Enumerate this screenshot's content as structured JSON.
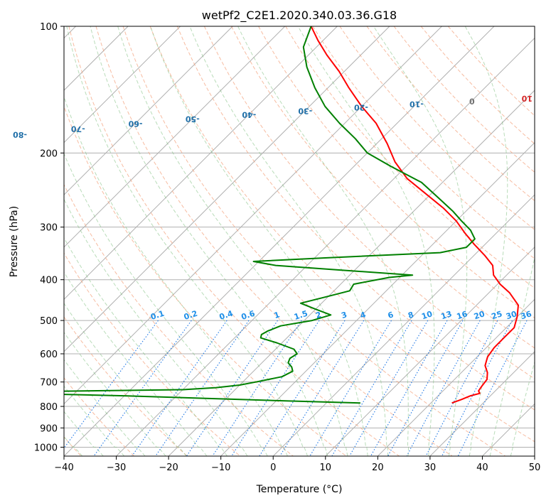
{
  "chart_data": {
    "type": "line",
    "chart_kind": "skew-T log-P diagram",
    "title": "wetPf2_C2E1.2020.340.03.36.G18",
    "xlabel": "Temperature (°C)",
    "ylabel": "Pressure (hPa)",
    "xlim": [
      -40,
      50
    ],
    "ylim": [
      1050,
      100
    ],
    "y_scale": "log",
    "x_ticks": [
      -40,
      -30,
      -20,
      -10,
      0,
      10,
      20,
      30,
      40,
      50
    ],
    "y_ticks": [
      100,
      200,
      300,
      400,
      500,
      600,
      700,
      800,
      900,
      1000
    ],
    "grid": true,
    "series": [
      {
        "role": "temperature",
        "color": "#ff0000",
        "points": [
          {
            "p": 785,
            "t": 24.0
          },
          {
            "p": 770,
            "t": 25.2
          },
          {
            "p": 755,
            "t": 26.2
          },
          {
            "p": 745,
            "t": 27.5
          },
          {
            "p": 735,
            "t": 26.8
          },
          {
            "p": 715,
            "t": 26.5
          },
          {
            "p": 690,
            "t": 26.2
          },
          {
            "p": 665,
            "t": 25.0
          },
          {
            "p": 640,
            "t": 23.2
          },
          {
            "p": 610,
            "t": 22.0
          },
          {
            "p": 580,
            "t": 21.5
          },
          {
            "p": 550,
            "t": 21.5
          },
          {
            "p": 520,
            "t": 21.5
          },
          {
            "p": 490,
            "t": 20.0
          },
          {
            "p": 460,
            "t": 18.0
          },
          {
            "p": 430,
            "t": 14.0
          },
          {
            "p": 410,
            "t": 10.5
          },
          {
            "p": 390,
            "t": 7.5
          },
          {
            "p": 370,
            "t": 5.5
          },
          {
            "p": 350,
            "t": 2.0
          },
          {
            "p": 330,
            "t": -2.0
          },
          {
            "p": 310,
            "t": -6.0
          },
          {
            "p": 290,
            "t": -10.0
          },
          {
            "p": 270,
            "t": -15.0
          },
          {
            "p": 250,
            "t": -21.0
          },
          {
            "p": 230,
            "t": -27.5
          },
          {
            "p": 210,
            "t": -33.0
          },
          {
            "p": 190,
            "t": -38.0
          },
          {
            "p": 170,
            "t": -44.0
          },
          {
            "p": 155,
            "t": -50.0
          },
          {
            "p": 140,
            "t": -56.0
          },
          {
            "p": 128,
            "t": -61.0
          },
          {
            "p": 117,
            "t": -66.5
          },
          {
            "p": 108,
            "t": -71.0
          },
          {
            "p": 100,
            "t": -75.0
          }
        ]
      },
      {
        "role": "dewpoint",
        "color": "#008000",
        "points": [
          {
            "p": 785,
            "t": 6.5
          },
          {
            "p": 775,
            "t": -10.0
          },
          {
            "p": 765,
            "t": -25.0
          },
          {
            "p": 755,
            "t": -40.0
          },
          {
            "p": 745,
            "t": -60.0
          },
          {
            "p": 737,
            "t": -55.0
          },
          {
            "p": 730,
            "t": -30.0
          },
          {
            "p": 722,
            "t": -24.0
          },
          {
            "p": 712,
            "t": -20.0
          },
          {
            "p": 700,
            "t": -17.5
          },
          {
            "p": 680,
            "t": -13.5
          },
          {
            "p": 660,
            "t": -12.5
          },
          {
            "p": 645,
            "t": -13.5
          },
          {
            "p": 630,
            "t": -15.0
          },
          {
            "p": 615,
            "t": -15.5
          },
          {
            "p": 600,
            "t": -15.0
          },
          {
            "p": 585,
            "t": -16.5
          },
          {
            "p": 565,
            "t": -21.0
          },
          {
            "p": 550,
            "t": -25.0
          },
          {
            "p": 540,
            "t": -25.5
          },
          {
            "p": 530,
            "t": -25.0
          },
          {
            "p": 515,
            "t": -23.5
          },
          {
            "p": 500,
            "t": -18.5
          },
          {
            "p": 485,
            "t": -16.0
          },
          {
            "p": 470,
            "t": -20.0
          },
          {
            "p": 455,
            "t": -24.0
          },
          {
            "p": 440,
            "t": -20.5
          },
          {
            "p": 425,
            "t": -17.0
          },
          {
            "p": 410,
            "t": -17.5
          },
          {
            "p": 395,
            "t": -12.0
          },
          {
            "p": 390,
            "t": -8.0
          },
          {
            "p": 380,
            "t": -22.0
          },
          {
            "p": 370,
            "t": -36.0
          },
          {
            "p": 362,
            "t": -41.0
          },
          {
            "p": 355,
            "t": -28.0
          },
          {
            "p": 345,
            "t": -7.0
          },
          {
            "p": 335,
            "t": -3.0
          },
          {
            "p": 320,
            "t": -3.0
          },
          {
            "p": 305,
            "t": -5.5
          },
          {
            "p": 290,
            "t": -9.0
          },
          {
            "p": 275,
            "t": -12.5
          },
          {
            "p": 255,
            "t": -18.0
          },
          {
            "p": 235,
            "t": -24.0
          },
          {
            "p": 215,
            "t": -33.0
          },
          {
            "p": 200,
            "t": -40.0
          },
          {
            "p": 185,
            "t": -45.0
          },
          {
            "p": 170,
            "t": -51.0
          },
          {
            "p": 155,
            "t": -57.0
          },
          {
            "p": 140,
            "t": -62.5
          },
          {
            "p": 125,
            "t": -68.0
          },
          {
            "p": 112,
            "t": -72.5
          },
          {
            "p": 100,
            "t": -75.0
          }
        ]
      }
    ],
    "dry_adiabats_c": [
      -100,
      -90,
      -80,
      -70,
      -60,
      -50,
      -40,
      -30,
      -20,
      -10,
      0,
      10,
      20,
      30,
      40
    ],
    "mixing_ratio_labels": [
      "0.1",
      "0.2",
      "0.4",
      "0.6",
      "1",
      "1.5",
      "2",
      "3",
      "4",
      "6",
      "8",
      "10",
      "13",
      "16",
      "20",
      "25",
      "30",
      "36"
    ],
    "mixing_ratio_values": [
      0.1,
      0.2,
      0.4,
      0.6,
      1,
      1.5,
      2,
      3,
      4,
      6,
      8,
      10,
      13,
      16,
      20,
      25,
      30,
      36
    ],
    "colors": {
      "isotherm": "#b0b0b0",
      "dry_adiabat": "#f4a582",
      "moist_adiabat": "#7fbf7f",
      "mixing_ratio": "#1f77e4",
      "dry_label_cold": "#1f6fa8",
      "dry_label_warm": "#d62728",
      "zero_label": "#707070",
      "mixing_label": "#1f8fe8"
    }
  }
}
